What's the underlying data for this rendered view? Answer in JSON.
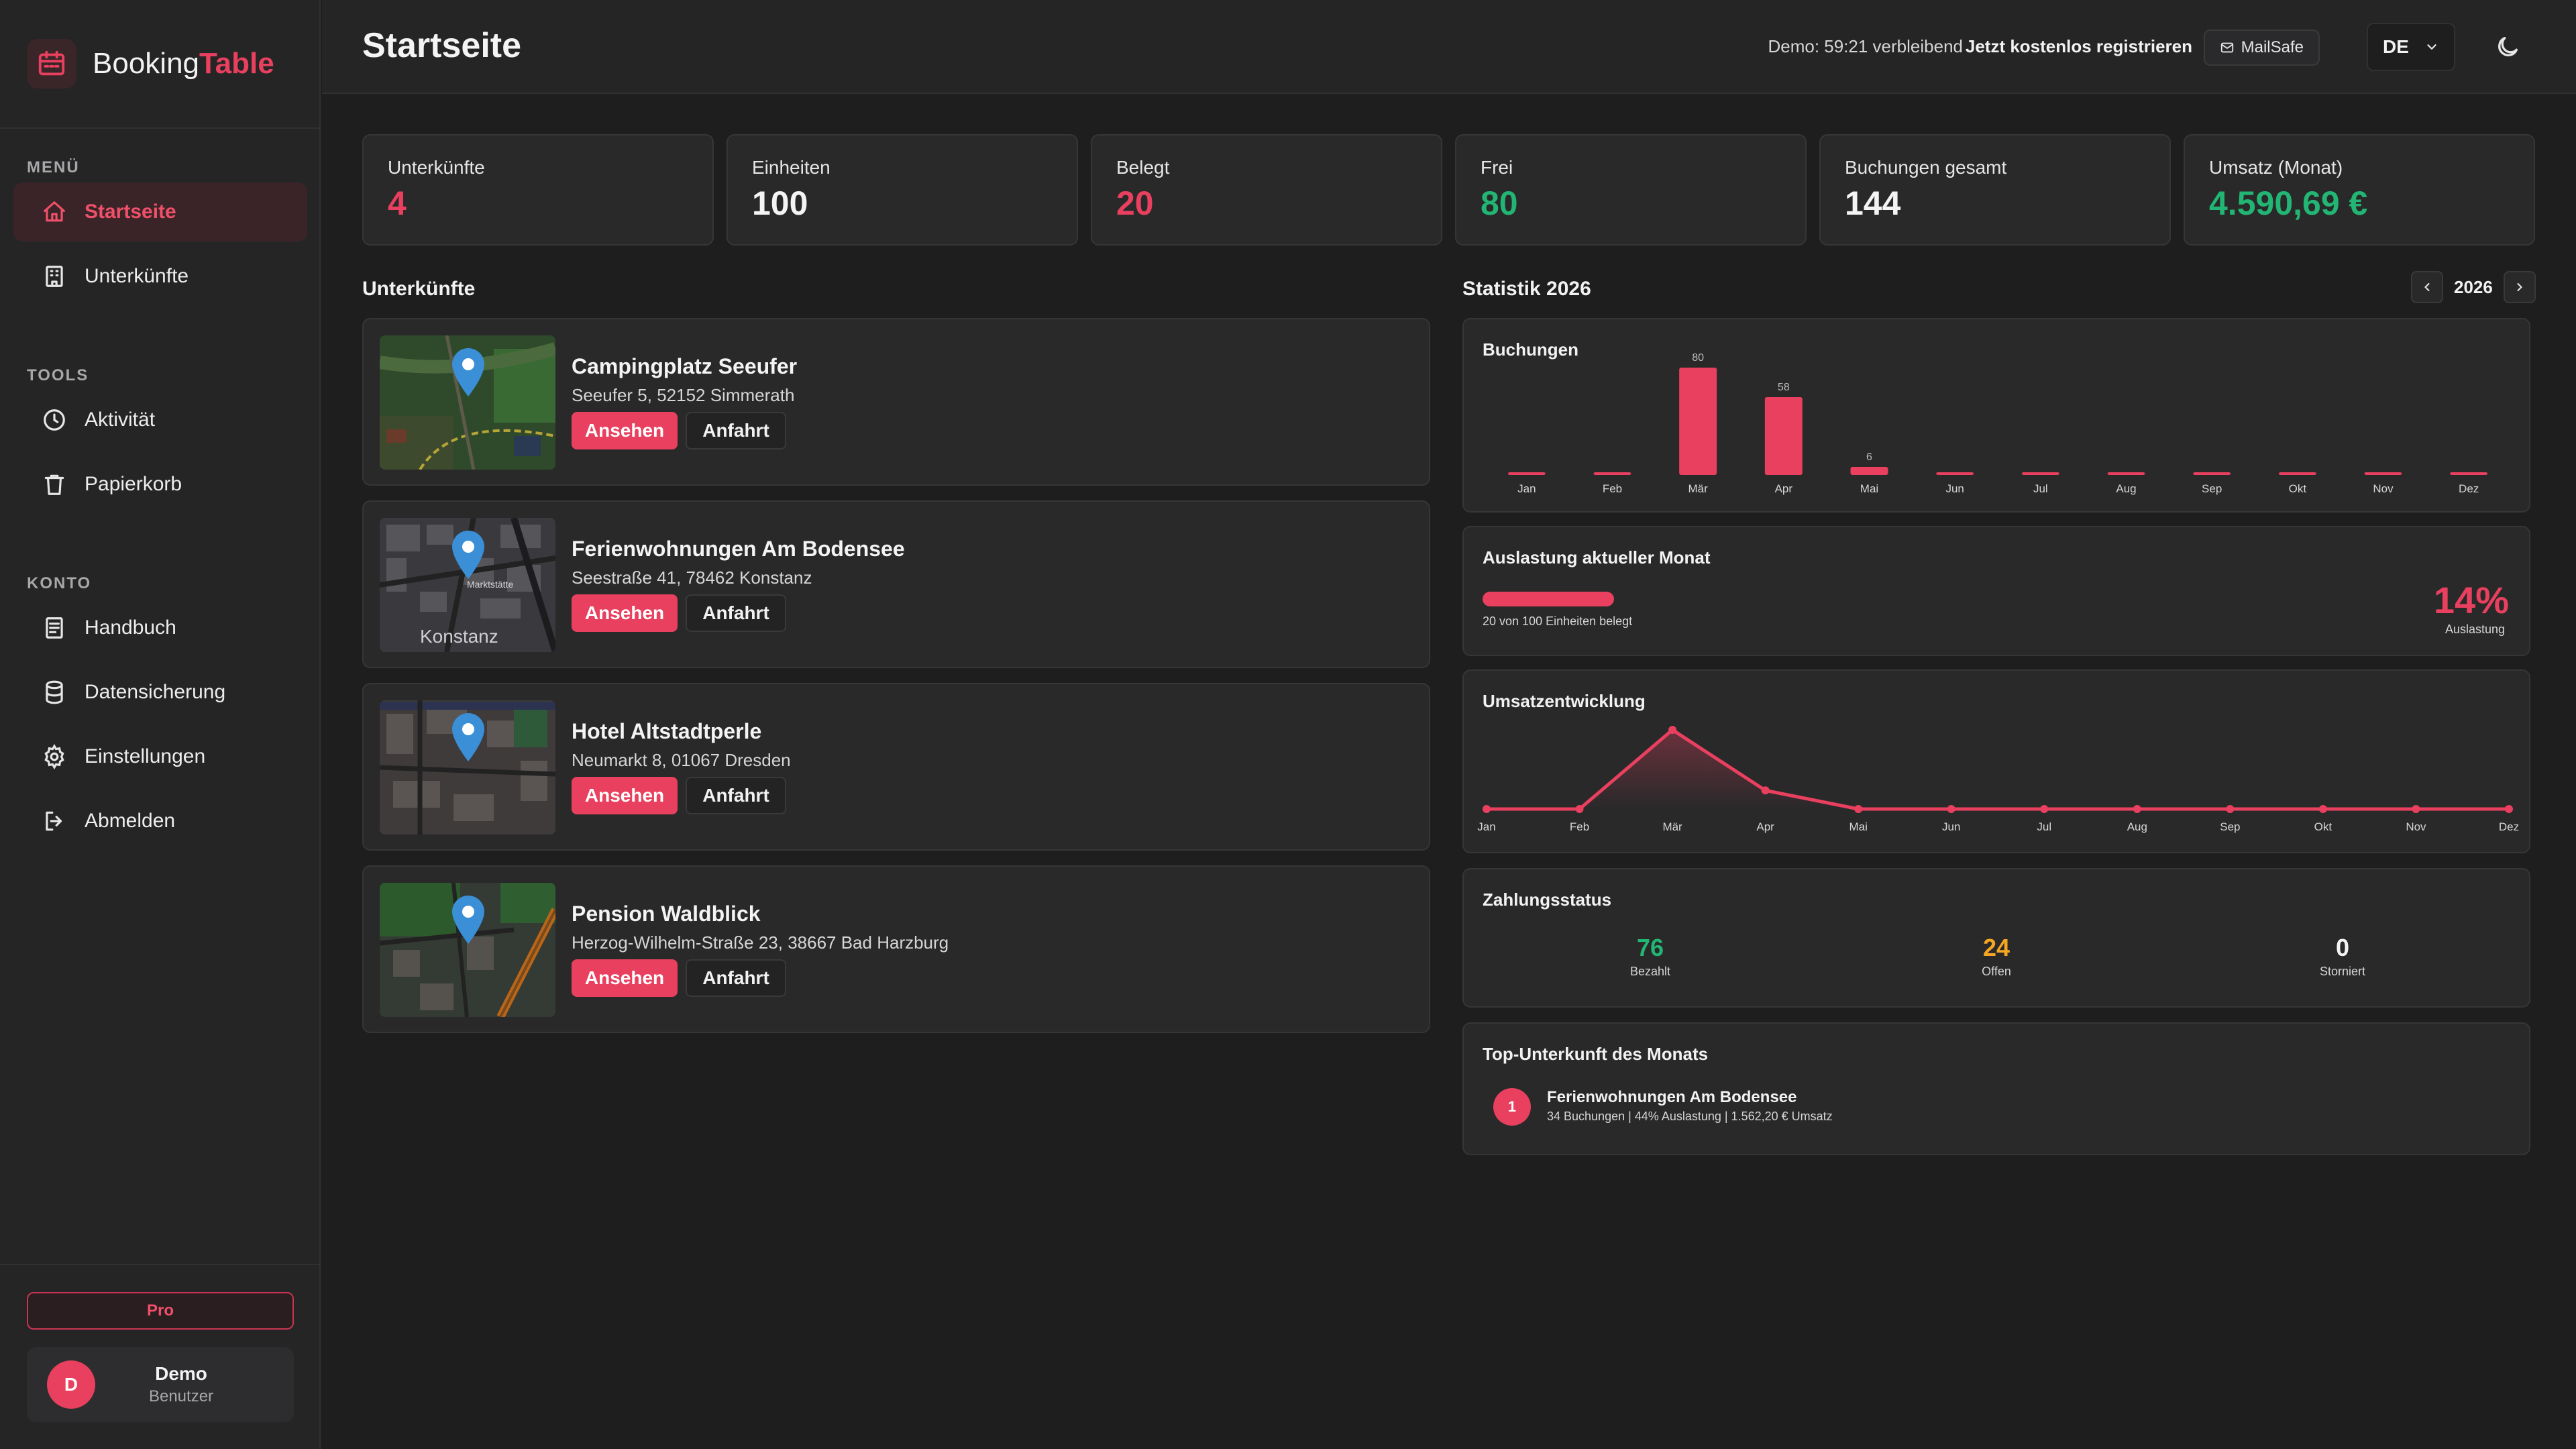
{
  "app": {
    "brand_part1": "Booking",
    "brand_part2": "Table"
  },
  "sidebar": {
    "menu_label": "MENÜ",
    "tools_label": "TOOLS",
    "account_label": "KONTO",
    "items": [
      {
        "label": "Startseite",
        "icon": "home-icon",
        "active": true
      },
      {
        "label": "Unterkünfte",
        "icon": "building-icon"
      },
      {
        "label": "Aktivität",
        "icon": "clock-icon"
      },
      {
        "label": "Papierkorb",
        "icon": "trash-icon"
      },
      {
        "label": "Handbuch",
        "icon": "book-icon"
      },
      {
        "label": "Datensicherung",
        "icon": "database-icon"
      },
      {
        "label": "Einstellungen",
        "icon": "gear-icon"
      },
      {
        "label": "Abmelden",
        "icon": "logout-icon"
      }
    ],
    "pro_label": "Pro",
    "user": {
      "initial": "D",
      "name": "Demo",
      "role": "Benutzer"
    }
  },
  "header": {
    "title": "Startseite",
    "demo_text": "Demo: 59:21 verbleibend",
    "register_label": "Jetzt kostenlos registrieren",
    "mailsafe_label": "MailSafe",
    "lang": "DE"
  },
  "stats": [
    {
      "label": "Unterkünfte",
      "value": "4",
      "color": "#e8405e"
    },
    {
      "label": "Einheiten",
      "value": "100",
      "color": "#f4f4f4"
    },
    {
      "label": "Belegt",
      "value": "20",
      "color": "#e8405e"
    },
    {
      "label": "Frei",
      "value": "80",
      "color": "#22b573"
    },
    {
      "label": "Buchungen gesamt",
      "value": "144",
      "color": "#f4f4f4"
    },
    {
      "label": "Umsatz (Monat)",
      "value": "4.590,69 €",
      "color": "#22b573"
    }
  ],
  "properties": {
    "title": "Unterkünfte",
    "view_label": "Ansehen",
    "route_label": "Anfahrt",
    "items": [
      {
        "name": "Campingplatz Seeufer",
        "address": "Seeufer 5, 52152 Simmerath"
      },
      {
        "name": "Ferienwohnungen Am Bodensee",
        "address": "Seestraße 41, 78462 Konstanz"
      },
      {
        "name": "Hotel Altstadtperle",
        "address": "Neumarkt 8, 01067 Dresden"
      },
      {
        "name": "Pension Waldblick",
        "address": "Herzog-Wilhelm-Straße 23, 38667 Bad Harzburg"
      }
    ],
    "map_labels": {
      "konstanz": "Konstanz",
      "marktstaette": "Marktstätte"
    }
  },
  "statistics": {
    "title": "Statistik 2026",
    "year": "2026"
  },
  "chart_data": [
    {
      "type": "bar",
      "title": "Buchungen",
      "categories": [
        "Jan",
        "Feb",
        "Mär",
        "Apr",
        "Mai",
        "Jun",
        "Jul",
        "Aug",
        "Sep",
        "Okt",
        "Nov",
        "Dez"
      ],
      "values": [
        0,
        0,
        80,
        58,
        6,
        0,
        0,
        0,
        0,
        0,
        0,
        0
      ],
      "data_labels": [
        "",
        "",
        "80",
        "58",
        "6",
        "",
        "",
        "",
        "",
        "",
        "",
        ""
      ],
      "ylim": [
        0,
        80
      ],
      "color": "#e8405e"
    },
    {
      "type": "line",
      "title": "Umsatzentwicklung",
      "categories": [
        "Jan",
        "Feb",
        "Mär",
        "Apr",
        "Mai",
        "Jun",
        "Jul",
        "Aug",
        "Sep",
        "Okt",
        "Nov",
        "Dez"
      ],
      "values": [
        0,
        0,
        4590.69,
        1080,
        0,
        0,
        0,
        0,
        0,
        0,
        0,
        0
      ],
      "ylim": [
        0,
        4590.69
      ],
      "color": "#e8405e"
    }
  ],
  "occupancy": {
    "title": "Auslastung aktueller Monat",
    "caption": "20 von 100 Einheiten belegt",
    "percent_text": "14%",
    "percent_label": "Auslastung",
    "fill_fraction": 0.14
  },
  "payments": {
    "title": "Zahlungsstatus",
    "items": [
      {
        "value": "76",
        "label": "Bezahlt",
        "color": "#22b573"
      },
      {
        "value": "24",
        "label": "Offen",
        "color": "#f5a623"
      },
      {
        "value": "0",
        "label": "Storniert",
        "color": "#f4f4f4"
      }
    ]
  },
  "top_property": {
    "title": "Top-Unterkunft des Monats",
    "rank": "1",
    "name": "Ferienwohnungen Am Bodensee",
    "details": "34 Buchungen | 44% Auslastung | 1.562,20 € Umsatz"
  }
}
